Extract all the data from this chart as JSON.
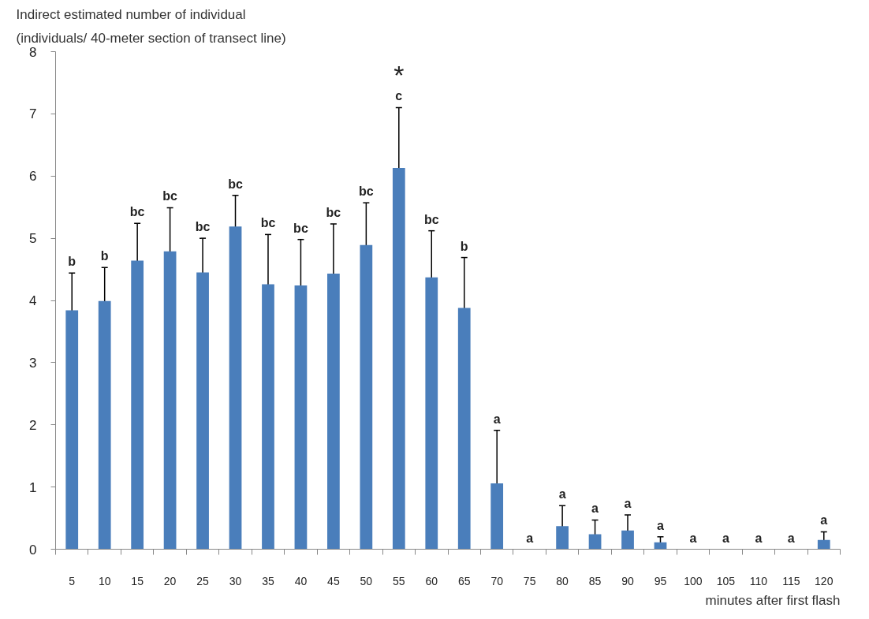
{
  "chart_data": {
    "type": "bar",
    "ylabel": "Indirect estimated number of individual\n(individuals/ 40-meter section of transect line)",
    "xlabel": "minutes after first flash",
    "categories": [
      "5",
      "10",
      "15",
      "20",
      "25",
      "30",
      "35",
      "40",
      "45",
      "50",
      "55",
      "60",
      "65",
      "70",
      "75",
      "80",
      "85",
      "90",
      "95",
      "100",
      "105",
      "110",
      "115",
      "120"
    ],
    "series": [
      {
        "color": "#4a7ebb",
        "values": [
          3.84,
          3.99,
          4.64,
          4.79,
          4.45,
          5.19,
          4.26,
          4.24,
          4.43,
          4.89,
          6.13,
          4.37,
          3.88,
          1.06,
          0,
          0.37,
          0.24,
          0.3,
          0.11,
          0,
          0,
          0,
          0,
          0.15
        ],
        "errors": [
          0.6,
          0.54,
          0.6,
          0.7,
          0.55,
          0.5,
          0.8,
          0.74,
          0.8,
          0.68,
          0.97,
          0.75,
          0.81,
          0.85,
          null,
          0.33,
          0.23,
          0.25,
          0.09,
          null,
          null,
          null,
          null,
          0.13
        ]
      }
    ],
    "ylim": [
      0,
      8
    ],
    "yticks": [
      0,
      1,
      2,
      3,
      4,
      5,
      6,
      7,
      8
    ],
    "grid": false,
    "annotations": [
      {
        "text": "b",
        "x": "5",
        "y": 4.44
      },
      {
        "text": "b",
        "x": "10",
        "y": 4.53
      },
      {
        "text": "bc",
        "x": "15",
        "y": 5.24
      },
      {
        "text": "bc",
        "x": "20",
        "y": 5.49
      },
      {
        "text": "bc",
        "x": "25",
        "y": 5.0
      },
      {
        "text": "bc",
        "x": "30",
        "y": 5.69
      },
      {
        "text": "bc",
        "x": "35",
        "y": 5.06
      },
      {
        "text": "bc",
        "x": "40",
        "y": 4.98
      },
      {
        "text": "bc",
        "x": "45",
        "y": 5.23
      },
      {
        "text": "bc",
        "x": "50",
        "y": 5.57
      },
      {
        "text": "c",
        "x": "55",
        "y": 7.1
      },
      "*",
      {
        "text": "bc",
        "x": "60",
        "y": 5.12
      },
      {
        "text": "b",
        "x": "65",
        "y": 4.69
      },
      {
        "text": "a",
        "x": "70",
        "y": 1.91
      },
      {
        "text": "a",
        "x": "75",
        "y": 0
      },
      {
        "text": "a",
        "x": "80",
        "y": 0.7
      },
      {
        "text": "a",
        "x": "85",
        "y": 0.47
      },
      {
        "text": "a",
        "x": "90",
        "y": 0.55
      },
      {
        "text": "a",
        "x": "95",
        "y": 0.2
      },
      {
        "text": "a",
        "x": "100",
        "y": 0
      },
      {
        "text": "a",
        "x": "105",
        "y": 0
      },
      {
        "text": "a",
        "x": "110",
        "y": 0
      },
      {
        "text": "a",
        "x": "115",
        "y": 0
      },
      {
        "text": "a",
        "x": "120",
        "y": 0.28
      }
    ]
  }
}
